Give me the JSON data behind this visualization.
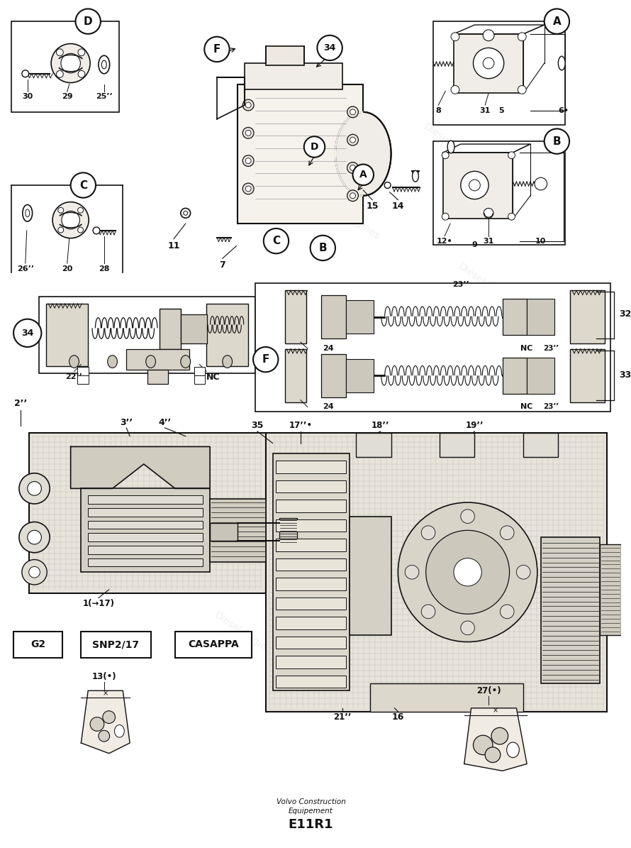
{
  "bg_color": "#ffffff",
  "line_color": "#111111",
  "footer_line1": "Volvo Construction",
  "footer_line2": "Equipement",
  "footer_code": "E11R1",
  "figsize": [
    8.9,
    11.95
  ],
  "dpi": 100
}
